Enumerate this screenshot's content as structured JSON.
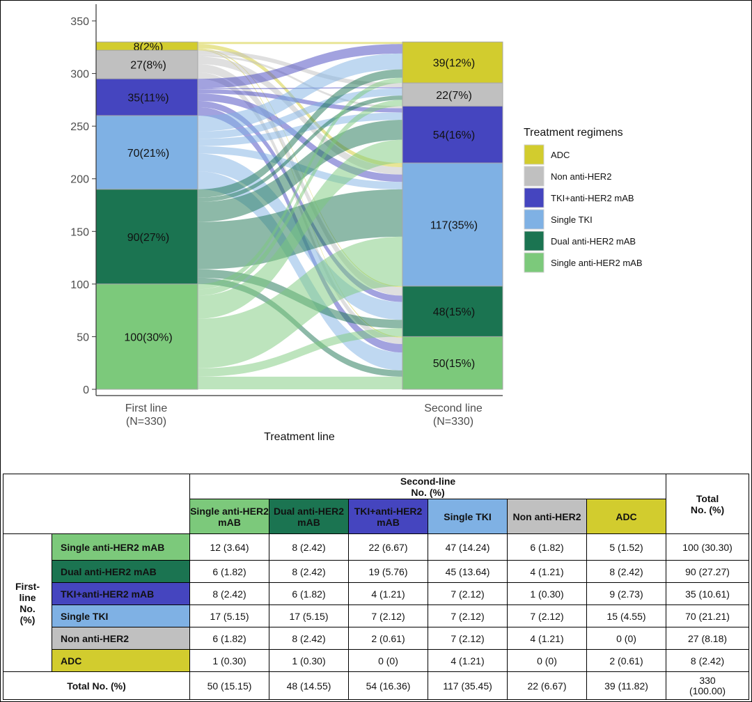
{
  "chart_data": {
    "type": "alluvial",
    "xlabel": "Treatment line",
    "ylim": [
      0,
      350
    ],
    "yticks": [
      0,
      50,
      100,
      150,
      200,
      250,
      300,
      350
    ],
    "axes": [
      {
        "label1": "First line",
        "label2": "(N=330)"
      },
      {
        "label1": "Second line",
        "label2": "(N=330)"
      }
    ],
    "legend": {
      "title": "Treatment regimens",
      "position": "right",
      "entries": [
        {
          "label": "ADC",
          "color": "#d2cc2e"
        },
        {
          "label": "Non anti-HER2",
          "color": "#c0c0c0"
        },
        {
          "label": "TKI+anti-HER2 mAB",
          "color": "#4545bf"
        },
        {
          "label": "Single TKI",
          "color": "#7fb1e4"
        },
        {
          "label": "Dual anti-HER2 mAB",
          "color": "#1b7451"
        },
        {
          "label": "Single anti-HER2 mAB",
          "color": "#7cc97b"
        }
      ]
    },
    "first_line": [
      {
        "category": "ADC",
        "count": 8,
        "label": "8(2%)"
      },
      {
        "category": "Non anti-HER2",
        "count": 27,
        "label": "27(8%)"
      },
      {
        "category": "TKI+anti-HER2 mAB",
        "count": 35,
        "label": "35(11%)"
      },
      {
        "category": "Single TKI",
        "count": 70,
        "label": "70(21%)"
      },
      {
        "category": "Dual anti-HER2 mAB",
        "count": 90,
        "label": "90(27%)"
      },
      {
        "category": "Single anti-HER2 mAB",
        "count": 100,
        "label": "100(30%)"
      }
    ],
    "second_line": [
      {
        "category": "ADC",
        "count": 39,
        "label": "39(12%)"
      },
      {
        "category": "Non anti-HER2",
        "count": 22,
        "label": "22(7%)"
      },
      {
        "category": "TKI+anti-HER2 mAB",
        "count": 54,
        "label": "54(16%)"
      },
      {
        "category": "Single TKI",
        "count": 117,
        "label": "117(35%)"
      },
      {
        "category": "Dual anti-HER2 mAB",
        "count": 48,
        "label": "48(15%)"
      },
      {
        "category": "Single anti-HER2 mAB",
        "count": 50,
        "label": "50(15%)"
      }
    ],
    "flows": [
      [
        2,
        0,
        0,
        4,
        1,
        1
      ],
      [
        0,
        4,
        2,
        7,
        8,
        6
      ],
      [
        9,
        1,
        4,
        7,
        6,
        8
      ],
      [
        15,
        7,
        7,
        7,
        17,
        17
      ],
      [
        8,
        4,
        19,
        45,
        8,
        6
      ],
      [
        5,
        6,
        22,
        47,
        8,
        12
      ]
    ]
  },
  "table": {
    "second_line_title": "Second-line",
    "second_line_sub": "No. (%)",
    "total_title": "Total",
    "total_sub": "No. (%)",
    "first_line_label": [
      "First-",
      "line",
      "No.",
      "(%)"
    ],
    "columns": [
      {
        "label": "Single anti-HER2 mAB",
        "color": "#7cc97b"
      },
      {
        "label": "Dual anti-HER2 mAB",
        "color": "#1b7451"
      },
      {
        "label": "TKI+anti-HER2 mAB",
        "color": "#4545bf"
      },
      {
        "label": "Single TKI",
        "color": "#7fb1e4"
      },
      {
        "label": "Non anti-HER2",
        "color": "#c0c0c0"
      },
      {
        "label": "ADC",
        "color": "#d2cc2e"
      }
    ],
    "rows": [
      {
        "label": "Single anti-HER2 mAB",
        "color": "#7cc97b",
        "cells": [
          "12 (3.64)",
          "8 (2.42)",
          "22 (6.67)",
          "47 (14.24)",
          "6 (1.82)",
          "5 (1.52)"
        ],
        "total": "100 (30.30)"
      },
      {
        "label": "Dual anti-HER2 mAB",
        "color": "#1b7451",
        "cells": [
          "6 (1.82)",
          "8 (2.42)",
          "19 (5.76)",
          "45 (13.64)",
          "4 (1.21)",
          "8 (2.42)"
        ],
        "total": "90 (27.27)"
      },
      {
        "label": "TKI+anti-HER2 mAB",
        "color": "#4545bf",
        "cells": [
          "8 (2.42)",
          "6 (1.82)",
          "4 (1.21)",
          "7 (2.12)",
          "1 (0.30)",
          "9 (2.73)"
        ],
        "total": "35 (10.61)"
      },
      {
        "label": "Single TKI",
        "color": "#7fb1e4",
        "cells": [
          "17 (5.15)",
          "17 (5.15)",
          "7 (2.12)",
          "7 (2.12)",
          "7 (2.12)",
          "15 (4.55)"
        ],
        "total": "70 (21.21)"
      },
      {
        "label": "Non anti-HER2",
        "color": "#c0c0c0",
        "cells": [
          "6 (1.82)",
          "8 (2.42)",
          "2 (0.61)",
          "7 (2.12)",
          "4 (1.21)",
          "0 (0)"
        ],
        "total": "27 (8.18)"
      },
      {
        "label": "ADC",
        "color": "#d2cc2e",
        "cells": [
          "1 (0.30)",
          "1 (0.30)",
          "0 (0)",
          "4 (1.21)",
          "0 (0)",
          "2 (0.61)"
        ],
        "total": "8 (2.42)"
      }
    ],
    "total_row": {
      "label": "Total No. (%)",
      "cells": [
        "50 (15.15)",
        "48 (14.55)",
        "54 (16.36)",
        "117 (35.45)",
        "22 (6.67)",
        "39 (11.82)"
      ],
      "total_line1": "330",
      "total_line2": "(100.00)"
    }
  }
}
